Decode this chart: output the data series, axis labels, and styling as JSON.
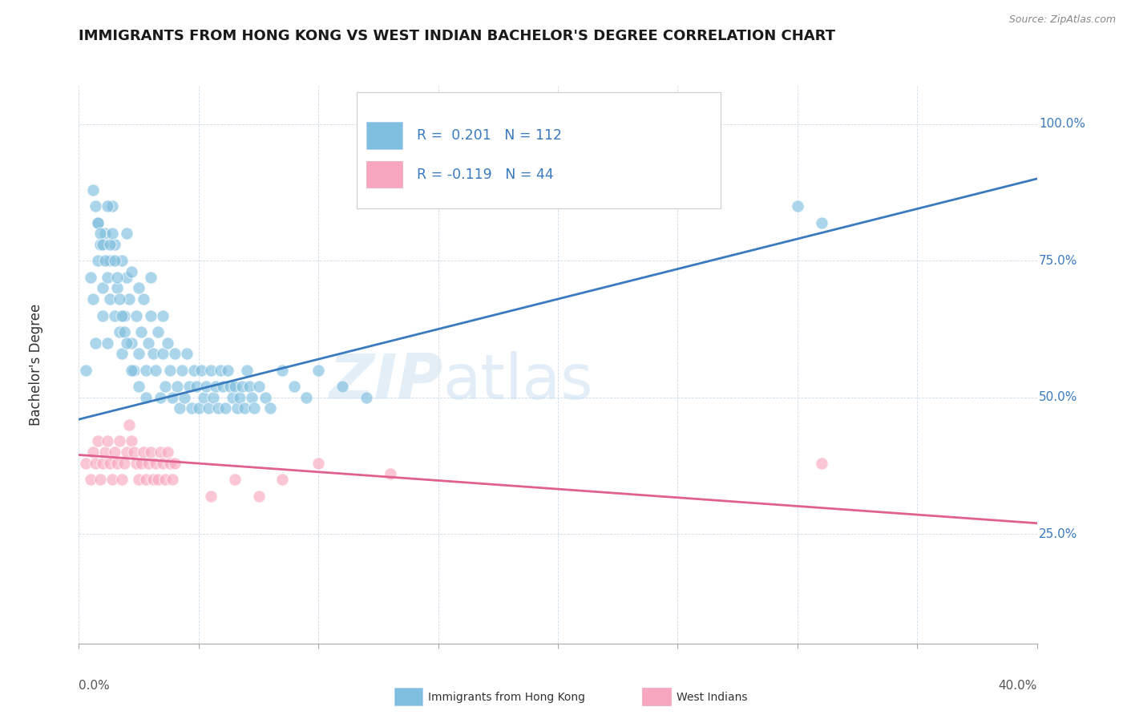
{
  "title": "IMMIGRANTS FROM HONG KONG VS WEST INDIAN BACHELOR'S DEGREE CORRELATION CHART",
  "source": "Source: ZipAtlas.com",
  "ylabel": "Bachelor's Degree",
  "y_ticks": [
    0.25,
    0.5,
    0.75,
    1.0
  ],
  "y_tick_labels": [
    "25.0%",
    "50.0%",
    "75.0%",
    "100.0%"
  ],
  "xmin": 0.0,
  "xmax": 0.4,
  "ymin": 0.05,
  "ymax": 1.07,
  "blue_R": 0.201,
  "blue_N": 112,
  "pink_R": -0.119,
  "pink_N": 44,
  "blue_color": "#7fbfdf",
  "blue_line_color": "#3a7abf",
  "pink_color": "#f8a8be",
  "pink_line_color": "#e06090",
  "legend_label_blue": "Immigrants from Hong Kong",
  "legend_label_pink": "West Indians",
  "watermark_zip": "ZIP",
  "watermark_atlas": "atlas",
  "blue_scatter_x": [
    0.003,
    0.005,
    0.006,
    0.007,
    0.008,
    0.008,
    0.009,
    0.01,
    0.01,
    0.011,
    0.012,
    0.012,
    0.013,
    0.013,
    0.014,
    0.015,
    0.015,
    0.016,
    0.017,
    0.018,
    0.018,
    0.019,
    0.02,
    0.02,
    0.021,
    0.022,
    0.022,
    0.023,
    0.024,
    0.025,
    0.025,
    0.026,
    0.027,
    0.028,
    0.029,
    0.03,
    0.03,
    0.031,
    0.032,
    0.033,
    0.034,
    0.035,
    0.035,
    0.036,
    0.037,
    0.038,
    0.039,
    0.04,
    0.041,
    0.042,
    0.043,
    0.044,
    0.045,
    0.046,
    0.047,
    0.048,
    0.049,
    0.05,
    0.051,
    0.052,
    0.053,
    0.054,
    0.055,
    0.056,
    0.057,
    0.058,
    0.059,
    0.06,
    0.061,
    0.062,
    0.063,
    0.064,
    0.065,
    0.066,
    0.067,
    0.068,
    0.069,
    0.07,
    0.071,
    0.072,
    0.073,
    0.075,
    0.078,
    0.08,
    0.085,
    0.09,
    0.095,
    0.1,
    0.11,
    0.12,
    0.006,
    0.007,
    0.008,
    0.009,
    0.01,
    0.011,
    0.012,
    0.013,
    0.014,
    0.015,
    0.016,
    0.017,
    0.018,
    0.019,
    0.02,
    0.022,
    0.025,
    0.028,
    0.3,
    0.31
  ],
  "blue_scatter_y": [
    0.55,
    0.72,
    0.68,
    0.6,
    0.75,
    0.82,
    0.78,
    0.7,
    0.65,
    0.8,
    0.72,
    0.6,
    0.68,
    0.75,
    0.85,
    0.78,
    0.65,
    0.7,
    0.62,
    0.75,
    0.58,
    0.65,
    0.72,
    0.8,
    0.68,
    0.6,
    0.73,
    0.55,
    0.65,
    0.7,
    0.58,
    0.62,
    0.68,
    0.55,
    0.6,
    0.65,
    0.72,
    0.58,
    0.55,
    0.62,
    0.5,
    0.58,
    0.65,
    0.52,
    0.6,
    0.55,
    0.5,
    0.58,
    0.52,
    0.48,
    0.55,
    0.5,
    0.58,
    0.52,
    0.48,
    0.55,
    0.52,
    0.48,
    0.55,
    0.5,
    0.52,
    0.48,
    0.55,
    0.5,
    0.52,
    0.48,
    0.55,
    0.52,
    0.48,
    0.55,
    0.52,
    0.5,
    0.52,
    0.48,
    0.5,
    0.52,
    0.48,
    0.55,
    0.52,
    0.5,
    0.48,
    0.52,
    0.5,
    0.48,
    0.55,
    0.52,
    0.5,
    0.55,
    0.52,
    0.5,
    0.88,
    0.85,
    0.82,
    0.8,
    0.78,
    0.75,
    0.85,
    0.78,
    0.8,
    0.75,
    0.72,
    0.68,
    0.65,
    0.62,
    0.6,
    0.55,
    0.52,
    0.5,
    0.85,
    0.82
  ],
  "pink_scatter_x": [
    0.003,
    0.005,
    0.006,
    0.007,
    0.008,
    0.009,
    0.01,
    0.011,
    0.012,
    0.013,
    0.014,
    0.015,
    0.016,
    0.017,
    0.018,
    0.019,
    0.02,
    0.021,
    0.022,
    0.023,
    0.024,
    0.025,
    0.026,
    0.027,
    0.028,
    0.029,
    0.03,
    0.031,
    0.032,
    0.033,
    0.034,
    0.035,
    0.036,
    0.037,
    0.038,
    0.039,
    0.04,
    0.055,
    0.065,
    0.075,
    0.085,
    0.1,
    0.13,
    0.31
  ],
  "pink_scatter_y": [
    0.38,
    0.35,
    0.4,
    0.38,
    0.42,
    0.35,
    0.38,
    0.4,
    0.42,
    0.38,
    0.35,
    0.4,
    0.38,
    0.42,
    0.35,
    0.38,
    0.4,
    0.45,
    0.42,
    0.4,
    0.38,
    0.35,
    0.38,
    0.4,
    0.35,
    0.38,
    0.4,
    0.35,
    0.38,
    0.35,
    0.4,
    0.38,
    0.35,
    0.4,
    0.38,
    0.35,
    0.38,
    0.32,
    0.35,
    0.32,
    0.35,
    0.38,
    0.36,
    0.38
  ],
  "blue_trendline_x": [
    0.0,
    0.4
  ],
  "blue_trendline_y": [
    0.46,
    0.9
  ],
  "pink_trendline_x": [
    0.0,
    0.4
  ],
  "pink_trendline_y": [
    0.395,
    0.27
  ]
}
